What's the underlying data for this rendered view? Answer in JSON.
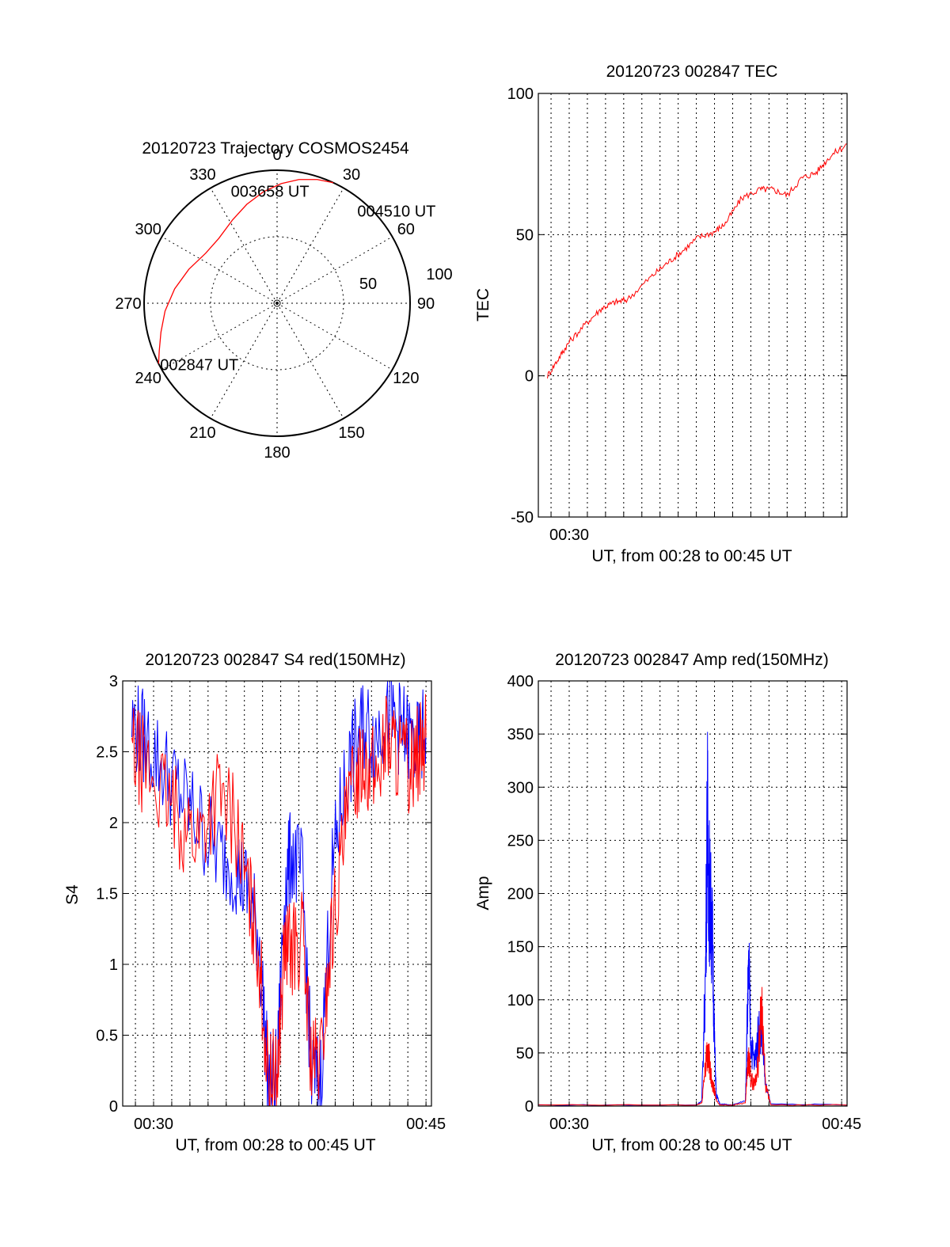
{
  "colors": {
    "red": "#ff0000",
    "blue": "#0000ff",
    "axis": "#000000"
  },
  "chart_data": [
    {
      "type": "polar",
      "title": "20120723 Trajectory COSMOS2454",
      "azimuth_labels": [
        "0",
        "30",
        "60",
        "90",
        "120",
        "150",
        "180",
        "210",
        "240",
        "270",
        "300",
        "330"
      ],
      "elevation_labels": [
        "50",
        "100"
      ],
      "trajectory": {
        "color": "red",
        "points": [
          {
            "azimuth": 243,
            "elevation": 0
          },
          {
            "azimuth": 248,
            "elevation": 4
          },
          {
            "azimuth": 256,
            "elevation": 9
          },
          {
            "azimuth": 266,
            "elevation": 14
          },
          {
            "azimuth": 278,
            "elevation": 20
          },
          {
            "azimuth": 291,
            "elevation": 26
          },
          {
            "azimuth": 305,
            "elevation": 31
          },
          {
            "azimuth": 318,
            "elevation": 31
          },
          {
            "azimuth": 332,
            "elevation": 26
          },
          {
            "azimuth": 343,
            "elevation": 20
          },
          {
            "azimuth": 353,
            "elevation": 14
          },
          {
            "azimuth": 2,
            "elevation": 9
          },
          {
            "azimuth": 10,
            "elevation": 5
          },
          {
            "azimuth": 18,
            "elevation": 2
          },
          {
            "azimuth": 25,
            "elevation": 0
          }
        ]
      },
      "annotations": [
        {
          "text": "002847 UT",
          "azimuth": 243,
          "elevation": 0
        },
        {
          "text": "003658 UT",
          "azimuth": 320,
          "elevation": 38
        },
        {
          "text": "004510 UT",
          "azimuth": 42,
          "elevation": 4
        }
      ]
    },
    {
      "type": "line",
      "title": "20120723 002847 TEC",
      "xlabel": "UT, from 00:28 to 00:45 UT",
      "ylabel": "TEC",
      "xlim": [
        28.3,
        45.3
      ],
      "ylim": [
        -50,
        100
      ],
      "yticks": [
        -50,
        0,
        50,
        100
      ],
      "xtick_labels": [
        {
          "x": 30,
          "label": "00:30"
        }
      ],
      "series": [
        {
          "color": "red",
          "x": [
            28.8,
            29.5,
            30.0,
            31.0,
            31.8,
            32.5,
            33.2,
            34.5,
            35.4,
            36.2,
            37.1,
            38.0,
            38.6,
            39.5,
            40.5,
            41.2,
            42.0,
            42.8,
            43.6,
            44.4,
            45.3
          ],
          "y": [
            0,
            7,
            12,
            19,
            24,
            26,
            27,
            35,
            40,
            44,
            49,
            51,
            54,
            63,
            66,
            66,
            64,
            70,
            72,
            78,
            82
          ]
        }
      ]
    },
    {
      "type": "line",
      "title": "20120723 002847 S4 red(150MHz)",
      "xlabel": "UT, from 00:28 to 00:45 UT",
      "ylabel": "S4",
      "xlim": [
        28.3,
        45.3
      ],
      "ylim": [
        0,
        3
      ],
      "yticks": [
        0,
        0.5,
        1,
        1.5,
        2,
        2.5,
        3
      ],
      "ytick_labels": [
        "0",
        "0.5",
        "1",
        "1.5",
        "2",
        "2.5",
        "3"
      ],
      "xtick_labels": [
        {
          "x": 30,
          "label": "00:30"
        },
        {
          "x": 45,
          "label": "00:45"
        }
      ],
      "series": [
        {
          "color": "blue",
          "x": [
            28.8,
            29.5,
            30.5,
            31.5,
            32.5,
            33.5,
            34.5,
            35.2,
            35.8,
            36.3,
            36.8,
            37.2,
            37.6,
            38.2,
            38.7,
            39.2,
            39.8,
            40.4,
            41.0,
            41.6,
            42.2,
            42.8,
            43.4,
            44.0,
            44.6,
            45.0
          ],
          "y": [
            2.7,
            2.6,
            2.4,
            2.2,
            2.0,
            1.8,
            1.7,
            1.5,
            1.2,
            0.2,
            0.2,
            1.5,
            1.8,
            1.6,
            0.2,
            0.2,
            1.6,
            2.2,
            2.5,
            2.7,
            2.6,
            2.8,
            2.7,
            2.6,
            2.5,
            2.7
          ]
        },
        {
          "color": "red",
          "x": [
            28.8,
            29.5,
            30.5,
            31.5,
            32.5,
            33.5,
            34.5,
            35.2,
            35.8,
            36.3,
            36.8,
            37.2,
            37.6,
            38.2,
            38.7,
            39.2,
            39.8,
            40.4,
            41.0,
            41.6,
            42.2,
            42.8,
            43.4,
            44.0,
            44.6,
            45.0
          ],
          "y": [
            2.5,
            2.4,
            2.2,
            2.0,
            1.9,
            2.2,
            2.0,
            1.5,
            1.1,
            0.2,
            0.2,
            1.1,
            1.1,
            1.2,
            0.3,
            0.3,
            1.2,
            1.8,
            2.3,
            2.5,
            2.3,
            2.6,
            2.5,
            2.4,
            2.5,
            2.6
          ]
        }
      ]
    },
    {
      "type": "line",
      "title": "20120723 002847 Amp red(150MHz)",
      "xlabel": "UT, from 00:28 to 00:45 UT",
      "ylabel": "Amp",
      "xlim": [
        28.3,
        45.3
      ],
      "ylim": [
        0,
        400
      ],
      "yticks": [
        0,
        50,
        100,
        150,
        200,
        250,
        300,
        350,
        400
      ],
      "xtick_labels": [
        {
          "x": 30,
          "label": "00:30"
        },
        {
          "x": 45,
          "label": "00:45"
        }
      ],
      "series": [
        {
          "color": "blue",
          "x": [
            28.3,
            37.0,
            37.3,
            37.5,
            37.6,
            37.7,
            37.8,
            37.9,
            38.0,
            38.1,
            38.3,
            39.0,
            39.7,
            39.8,
            39.9,
            40.0,
            40.2,
            40.4,
            40.6,
            40.8,
            41.1,
            45.3
          ],
          "y": [
            1,
            1,
            5,
            120,
            275,
            210,
            180,
            150,
            60,
            10,
            2,
            1,
            5,
            80,
            130,
            60,
            40,
            65,
            80,
            20,
            2,
            1
          ]
        },
        {
          "color": "red",
          "x": [
            28.3,
            37.0,
            37.3,
            37.5,
            37.6,
            37.7,
            37.8,
            37.9,
            38.0,
            38.1,
            38.3,
            39.0,
            39.7,
            39.8,
            39.9,
            40.0,
            40.2,
            40.4,
            40.6,
            40.8,
            41.1,
            45.3
          ],
          "y": [
            1,
            1,
            3,
            40,
            50,
            45,
            30,
            20,
            15,
            5,
            1,
            1,
            3,
            30,
            45,
            25,
            20,
            40,
            100,
            20,
            1,
            1
          ]
        }
      ]
    }
  ]
}
